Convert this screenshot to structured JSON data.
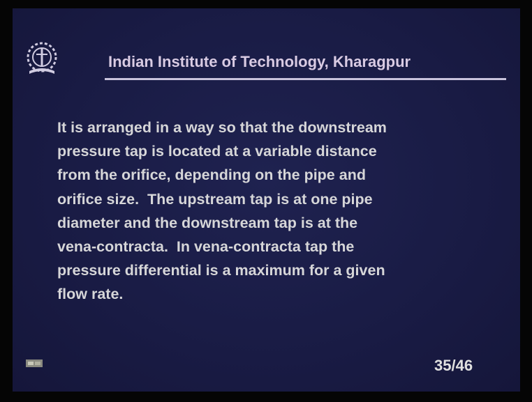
{
  "header": {
    "title": "Indian Institute of Technology, Kharagpur"
  },
  "body": {
    "lines": [
      "It is arranged in a way so that the downstream",
      "pressure tap is located at a variable distance",
      "from the orifice, depending on the pipe and",
      "orifice size.  The upstream tap is at one pipe",
      "diameter and the downstream tap is at the",
      "vena-contracta.  In vena-contracta tap the",
      "pressure differential is a maximum for a given",
      "flow rate."
    ]
  },
  "footer": {
    "page": "35/46"
  }
}
